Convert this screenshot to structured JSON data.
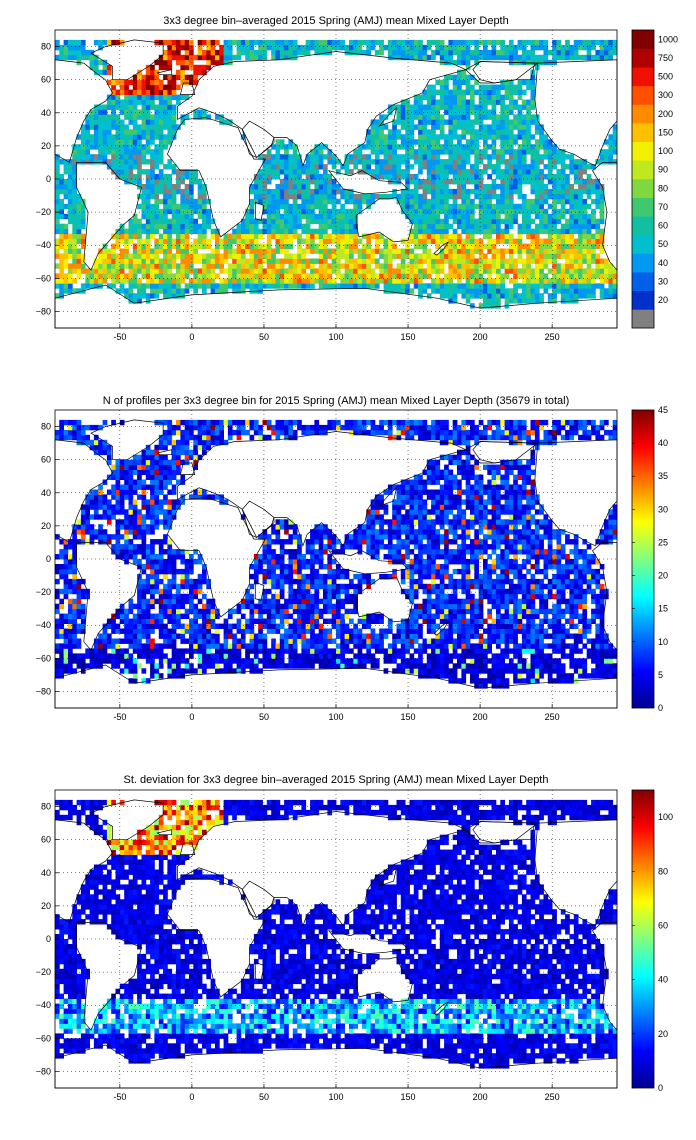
{
  "chart_data": [
    {
      "type": "heatmap",
      "title": "3x3 degree bin–averaged 2015 Spring (AMJ) mean Mixed Layer Depth",
      "xlabel": "",
      "ylabel": "",
      "xlim": [
        -95,
        295
      ],
      "ylim": [
        -90,
        90
      ],
      "x_ticks": [
        "-50",
        "0",
        "50",
        "100",
        "150",
        "200",
        "250"
      ],
      "y_ticks": [
        "80",
        "60",
        "40",
        "20",
        "0",
        "−20",
        "−40",
        "−60",
        "−80"
      ],
      "grid": true,
      "colorbar": {
        "scale": "categorical",
        "labels": [
          "20",
          "30",
          "40",
          "50",
          "60",
          "70",
          "80",
          "90",
          "100",
          "150",
          "200",
          "300",
          "500",
          "750",
          "1000"
        ],
        "colors": [
          "#808080",
          "#0030c8",
          "#0060e8",
          "#0098f0",
          "#00c0d0",
          "#10c0a0",
          "#40c870",
          "#80d840",
          "#c0e820",
          "#f0f000",
          "#ffc000",
          "#ff8c00",
          "#ff5000",
          "#f01000",
          "#b00000",
          "#800000"
        ],
        "placement": "right"
      },
      "description": "Mean mixed layer depth (m) per 3x3 degree bin; deepest values (>300 m) in the subpolar North Atlantic (Labrador/Irminger Sea), deep band (100-300 m) in the Southern Ocean around 45-60S, typical 30-60 m elsewhere; grey = below 20 m."
    },
    {
      "type": "heatmap",
      "title": "N of profiles per 3x3 degree bin for 2015 Spring (AMJ) mean Mixed Layer Depth  (35679 in total)",
      "xlabel": "",
      "ylabel": "",
      "xlim": [
        -95,
        295
      ],
      "ylim": [
        -90,
        90
      ],
      "x_ticks": [
        "-50",
        "0",
        "50",
        "100",
        "150",
        "200",
        "250"
      ],
      "y_ticks": [
        "80",
        "60",
        "40",
        "20",
        "0",
        "−20",
        "−40",
        "−60",
        "−80"
      ],
      "grid": true,
      "colorbar": {
        "scale": "jet",
        "min": 0,
        "max": 45,
        "labels": [
          "0",
          "5",
          "10",
          "15",
          "20",
          "25",
          "30",
          "35",
          "40",
          "45"
        ],
        "placement": "right"
      },
      "total_profiles": 35679
    },
    {
      "type": "heatmap",
      "title": "St. deviation for 3x3 degree bin–averaged 2015 Spring (AMJ) mean Mixed Layer Depth",
      "xlabel": "",
      "ylabel": "",
      "xlim": [
        -95,
        295
      ],
      "ylim": [
        -90,
        90
      ],
      "x_ticks": [
        "-50",
        "0",
        "50",
        "100",
        "150",
        "200",
        "250"
      ],
      "y_ticks": [
        "80",
        "60",
        "40",
        "20",
        "0",
        "−20",
        "−40",
        "−60",
        "−80"
      ],
      "grid": true,
      "colorbar": {
        "scale": "jet",
        "min": 0,
        "max": 110,
        "labels": [
          "0",
          "20",
          "40",
          "60",
          "80",
          "100"
        ],
        "placement": "right"
      }
    }
  ]
}
